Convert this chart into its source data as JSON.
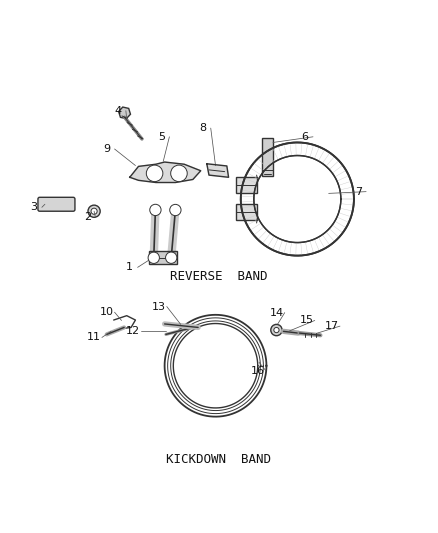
{
  "bg_color": "#ffffff",
  "line_color": "#333333",
  "label_color": "#111111",
  "section1_label": "REVERSE  BAND",
  "section2_label": "KICKDOWN  BAND",
  "font_size_labels": 8,
  "font_size_section": 9
}
